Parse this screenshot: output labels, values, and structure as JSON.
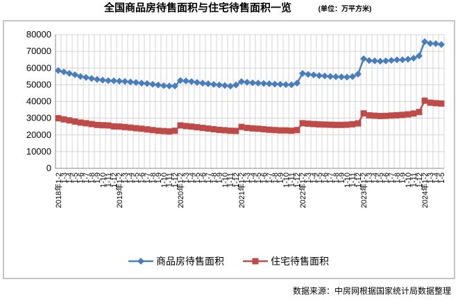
{
  "chart_data": {
    "type": "line",
    "title": "全国商品房待售面积与住宅待售面积一览",
    "subtitle": "(单位：万平方米)",
    "source": "数据来源：中房网根据国家统计局数据整理",
    "categories": [
      "2018年1-2",
      "1-3",
      "1-4",
      "1-5",
      "1-6",
      "1-7",
      "1-8",
      "1-9",
      "1-10",
      "1-11",
      "1-12",
      "2019年1-2",
      "1-3",
      "1-4",
      "1-5",
      "1-6",
      "1-7",
      "1-8",
      "1-9",
      "1-10",
      "1-11",
      "1-12",
      "2020年1-2",
      "1-3",
      "1-4",
      "1-5",
      "1-6",
      "1-7",
      "1-8",
      "1-9",
      "1-10",
      "1-11",
      "1-12",
      "2021年1-2",
      "1-3",
      "1-4",
      "1-5",
      "1-6",
      "1-7",
      "1-8",
      "1-9",
      "1-10",
      "1-11",
      "1-12",
      "2022年1-2",
      "1-3",
      "1-4",
      "1-5",
      "1-6",
      "1-7",
      "1-8",
      "1-9",
      "1-10",
      "1-11",
      "1-12",
      "2023年1-2",
      "1-3",
      "1-4",
      "1-5",
      "1-6",
      "1-7",
      "1-8",
      "1-9",
      "1-10",
      "1-11",
      "1-12",
      "2024年1-2",
      "1-3",
      "1-4",
      "1-5"
    ],
    "series": [
      {
        "name": "商品房待售面积",
        "color": "#4a7ebb",
        "marker": "diamond",
        "values": [
          58500,
          57700,
          56800,
          56000,
          55000,
          54400,
          53800,
          53200,
          52800,
          52500,
          52400,
          52200,
          52000,
          51700,
          51400,
          51000,
          50700,
          50300,
          49900,
          49500,
          49300,
          49300,
          52600,
          52300,
          51900,
          51400,
          51000,
          50600,
          50200,
          49900,
          49600,
          49200,
          49900,
          51900,
          51500,
          51200,
          51000,
          50800,
          50600,
          50400,
          50300,
          50100,
          50000,
          51000,
          56800,
          56200,
          55900,
          55500,
          55300,
          55000,
          54800,
          54700,
          54600,
          54900,
          56400,
          65600,
          64500,
          64300,
          64100,
          64300,
          64600,
          64900,
          65000,
          65300,
          65900,
          67300,
          75800,
          74700,
          74600,
          74100
        ]
      },
      {
        "name": "住宅待售面积",
        "color": "#be4b48",
        "marker": "square",
        "values": [
          30000,
          29300,
          28700,
          28000,
          27400,
          27000,
          26500,
          26000,
          25800,
          25700,
          25100,
          25000,
          24700,
          24400,
          24000,
          23700,
          23300,
          22900,
          22500,
          22300,
          22100,
          22500,
          25700,
          25300,
          25000,
          24600,
          24200,
          23800,
          23400,
          23000,
          22800,
          22500,
          22400,
          24800,
          24200,
          23900,
          23700,
          23400,
          23100,
          22900,
          22700,
          22700,
          22500,
          22900,
          27000,
          26700,
          26500,
          26300,
          26200,
          26100,
          26000,
          26000,
          26100,
          26400,
          26900,
          32900,
          31700,
          31500,
          31300,
          31400,
          31600,
          31800,
          32000,
          32300,
          32800,
          33700,
          40500,
          39300,
          39000,
          38800
        ]
      }
    ],
    "ylim": [
      0,
      80000
    ],
    "yticks": [
      0,
      10000,
      20000,
      30000,
      40000,
      50000,
      60000,
      70000,
      80000
    ],
    "grid": true
  }
}
